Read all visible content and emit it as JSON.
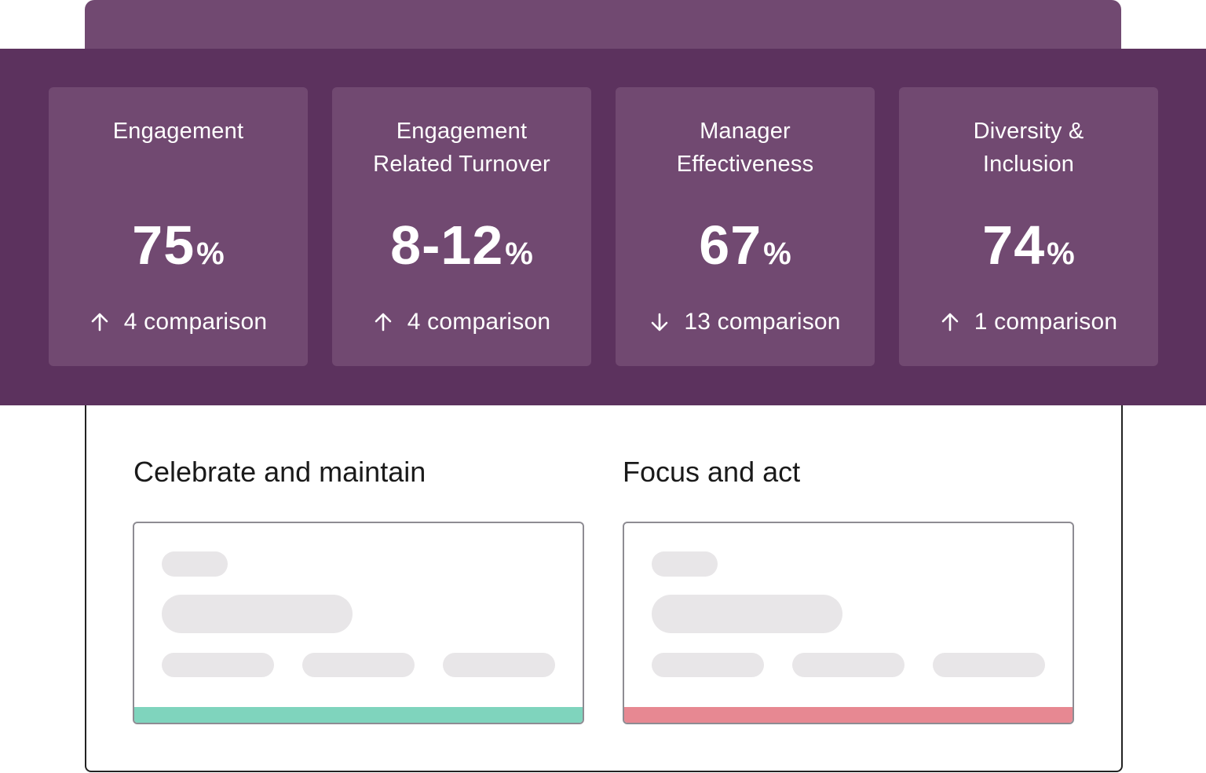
{
  "colors": {
    "band": "#5c325e",
    "card": "#714971",
    "positive_strip": "#7fd4bd",
    "negative_strip": "#e78892"
  },
  "metrics": [
    {
      "title_lines": [
        "Engagement",
        ""
      ],
      "value": "75",
      "unit": "%",
      "direction": "up",
      "arrow_icon": "arrow-up-icon",
      "comparison": "4 comparison"
    },
    {
      "title_lines": [
        "Engagement",
        "Related Turnover"
      ],
      "value": "8-12",
      "unit": "%",
      "direction": "up",
      "arrow_icon": "arrow-up-icon",
      "comparison": "4 comparison"
    },
    {
      "title_lines": [
        "Manager",
        "Effectiveness"
      ],
      "value": "67",
      "unit": "%",
      "direction": "down",
      "arrow_icon": "arrow-down-icon",
      "comparison": "13 comparison"
    },
    {
      "title_lines": [
        "Diversity &",
        "Inclusion"
      ],
      "value": "74",
      "unit": "%",
      "direction": "up",
      "arrow_icon": "arrow-up-icon",
      "comparison": "1 comparison"
    }
  ],
  "sections": {
    "celebrate": {
      "title": "Celebrate and maintain",
      "status": "positive"
    },
    "focus": {
      "title": "Focus and act",
      "status": "negative"
    }
  }
}
